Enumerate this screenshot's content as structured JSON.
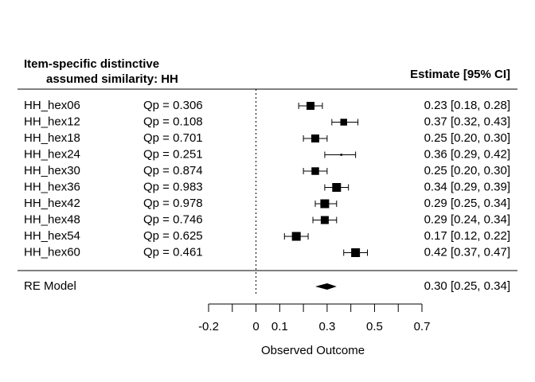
{
  "chart_data": {
    "type": "forest",
    "title_line1": "Item-specific distinctive",
    "title_line2": "assumed similarity: HH",
    "estimate_header": "Estimate [95% CI]",
    "xlabel": "Observed Outcome",
    "x_ticks": [
      "-0.2",
      "0",
      "0.1",
      "0.3",
      "0.5",
      "0.7"
    ],
    "x_tick_values": [
      -0.2,
      -0.1,
      0,
      0.1,
      0.2,
      0.3,
      0.4,
      0.5,
      0.6,
      0.7
    ],
    "xlim": [
      -0.2,
      0.7
    ],
    "reference_line": 0,
    "studies": [
      {
        "label": "HH_hex06",
        "qp": "Qp = 0.306",
        "estimate": 0.23,
        "ci_low": 0.18,
        "ci_high": 0.28,
        "text": "0.23 [0.18, 0.28]",
        "weight": 1.0
      },
      {
        "label": "HH_hex12",
        "qp": "Qp = 0.108",
        "estimate": 0.37,
        "ci_low": 0.32,
        "ci_high": 0.43,
        "text": "0.37 [0.32, 0.43]",
        "weight": 0.85
      },
      {
        "label": "HH_hex18",
        "qp": "Qp = 0.701",
        "estimate": 0.25,
        "ci_low": 0.2,
        "ci_high": 0.3,
        "text": "0.25 [0.20, 0.30]",
        "weight": 1.0
      },
      {
        "label": "HH_hex24",
        "qp": "Qp = 0.251",
        "estimate": 0.36,
        "ci_low": 0.29,
        "ci_high": 0.42,
        "text": "0.36 [0.29, 0.42]",
        "weight": 0.25
      },
      {
        "label": "HH_hex30",
        "qp": "Qp = 0.874",
        "estimate": 0.25,
        "ci_low": 0.2,
        "ci_high": 0.3,
        "text": "0.25 [0.20, 0.30]",
        "weight": 0.95
      },
      {
        "label": "HH_hex36",
        "qp": "Qp = 0.983",
        "estimate": 0.34,
        "ci_low": 0.29,
        "ci_high": 0.39,
        "text": "0.34 [0.29, 0.39]",
        "weight": 1.1
      },
      {
        "label": "HH_hex42",
        "qp": "Qp = 0.978",
        "estimate": 0.29,
        "ci_low": 0.25,
        "ci_high": 0.34,
        "text": "0.29 [0.25, 0.34]",
        "weight": 1.1
      },
      {
        "label": "HH_hex48",
        "qp": "Qp = 0.746",
        "estimate": 0.29,
        "ci_low": 0.24,
        "ci_high": 0.34,
        "text": "0.29 [0.24, 0.34]",
        "weight": 1.0
      },
      {
        "label": "HH_hex54",
        "qp": "Qp = 0.625",
        "estimate": 0.17,
        "ci_low": 0.12,
        "ci_high": 0.22,
        "text": "0.17 [0.12, 0.22]",
        "weight": 1.1
      },
      {
        "label": "HH_hex60",
        "qp": "Qp = 0.461",
        "estimate": 0.42,
        "ci_low": 0.37,
        "ci_high": 0.47,
        "text": "0.42 [0.37, 0.47]",
        "weight": 1.1
      }
    ],
    "summary": {
      "label": "RE Model",
      "estimate": 0.3,
      "ci_low": 0.25,
      "ci_high": 0.34,
      "text": "0.30 [0.25, 0.34]"
    }
  }
}
